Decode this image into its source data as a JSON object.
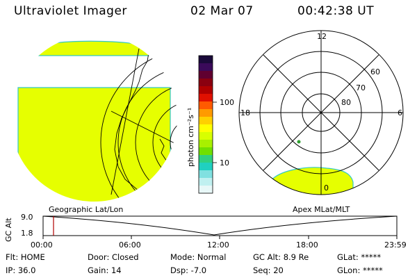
{
  "header": {
    "title": "Ultraviolet Imager",
    "date": "02 Mar 07",
    "time": "00:42:38 UT"
  },
  "colorbar": {
    "unit_label": "photon cm⁻²s⁻¹",
    "ticks": [
      "100",
      "10"
    ],
    "colors": [
      "#1a0a3a",
      "#3a0a5a",
      "#600030",
      "#8a0010",
      "#b00000",
      "#e01000",
      "#ff5a00",
      "#ff9a00",
      "#ffd000",
      "#ffff00",
      "#d8ff00",
      "#a8f000",
      "#70e000",
      "#30d080",
      "#20d0c0",
      "#80e0e0",
      "#c0f0f0",
      "#e8f8f8"
    ]
  },
  "polar_plot": {
    "hour_labels": {
      "top": "12",
      "left": "18",
      "right": "6",
      "bottom": "0"
    },
    "lat_labels": [
      "60",
      "70",
      "80"
    ]
  },
  "altitude_panel": {
    "left_title": "Geographic Lat/Lon",
    "right_title": "Apex MLat/MLT",
    "axis_label": "GC Alt",
    "y_ticks": [
      "9.0",
      "1.8"
    ],
    "x_ticks": [
      "00:00",
      "06:00",
      "12:00",
      "18:00",
      "23:59"
    ],
    "marker_time": "00:42"
  },
  "status": {
    "flt": "Flt: HOME",
    "ip": "IP: 36.0",
    "door": "Door: Closed",
    "gain": "Gain: 14",
    "mode": "Mode: Normal",
    "dsp": "Dsp:   -7.0",
    "gc_alt": "GC Alt: 8.9 Re",
    "seq": "Seq: 20",
    "glat": "GLat: *****",
    "glon": "GLon: *****"
  },
  "colors": {
    "aurora_fill": "#e6ff00",
    "aurora_edge": "#30c8c8",
    "marker": "#b00000"
  }
}
